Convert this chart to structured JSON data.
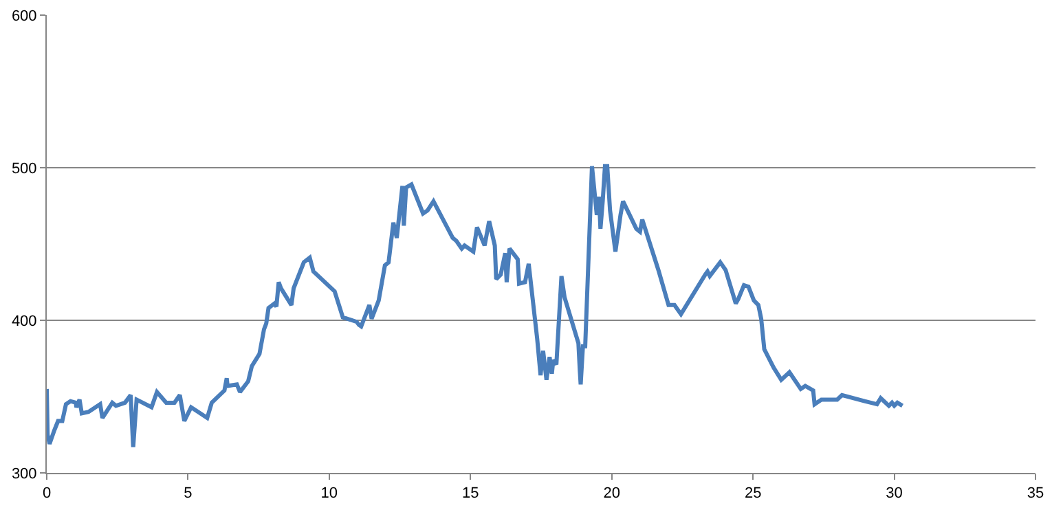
{
  "chart_data": {
    "type": "line",
    "grid": "y",
    "line_style": "solid",
    "marker": "none",
    "xlim": [
      0,
      35
    ],
    "xticks": [
      0,
      5,
      10,
      15,
      20,
      25,
      30,
      35
    ],
    "ylim": [
      300,
      600
    ],
    "yticks": [
      300,
      400,
      500,
      600
    ],
    "series": [
      {
        "color": "#4a7ebb",
        "x": [
          0,
          0.03,
          0.1,
          0.27,
          0.4,
          0.55,
          0.68,
          0.84,
          1.03,
          1.05,
          1.16,
          1.24,
          1.48,
          1.89,
          1.97,
          2.32,
          2.45,
          2.77,
          2.97,
          3.06,
          3.18,
          3.71,
          3.9,
          4.23,
          4.52,
          4.71,
          4.87,
          5.11,
          5.68,
          5.84,
          6.29,
          6.37,
          6.4,
          6.73,
          6.84,
          7.13,
          7.26,
          7.53,
          7.69,
          7.77,
          7.85,
          8.06,
          8.13,
          8.21,
          8.29,
          8.66,
          8.74,
          9.1,
          9.31,
          9.44,
          10.19,
          10.48,
          10.97,
          11.05,
          11.13,
          11.42,
          11.5,
          11.75,
          11.97,
          12.1,
          12.27,
          12.39,
          12.46,
          12.59,
          12.64,
          12.72,
          12.91,
          13.32,
          13.48,
          13.69,
          14.37,
          14.5,
          14.69,
          14.79,
          15.1,
          15.23,
          15.5,
          15.66,
          15.86,
          15.91,
          16.07,
          16.23,
          16.28,
          16.38,
          16.67,
          16.72,
          16.93,
          17.06,
          17.28,
          17.36,
          17.48,
          17.57,
          17.69,
          17.8,
          17.88,
          17.93,
          18.04,
          18.22,
          18.33,
          18.82,
          18.87,
          18.9,
          18.98,
          19.06,
          19.3,
          19.47,
          19.55,
          19.6,
          19.68,
          19.76,
          19.84,
          19.94,
          20.13,
          20.31,
          20.4,
          20.87,
          21.0,
          21.08,
          21.65,
          22.01,
          22.22,
          22.45,
          23.31,
          23.39,
          23.47,
          23.84,
          24.03,
          24.39,
          24.48,
          24.68,
          24.84,
          25.03,
          25.19,
          25.29,
          25.4,
          25.73,
          26.0,
          26.29,
          26.69,
          26.85,
          27.13,
          27.18,
          27.42,
          27.98,
          28.15,
          28.95,
          29.39,
          29.52,
          29.81,
          29.92,
          30.0,
          30.11,
          30.29
        ],
        "values": [
          355,
          325,
          319,
          328,
          334,
          334,
          345,
          347,
          346,
          343,
          348,
          339,
          340,
          345,
          336,
          346,
          344,
          346,
          351,
          317,
          348,
          343,
          353,
          346,
          346,
          351,
          334,
          343,
          336,
          346,
          354,
          362,
          357,
          358,
          353,
          360,
          370,
          378,
          394,
          398,
          408,
          411,
          409,
          425,
          421,
          410,
          421,
          438,
          441,
          432,
          419,
          402,
          399,
          397,
          396,
          410,
          401,
          413,
          436,
          438,
          464,
          454,
          466,
          488,
          462,
          487,
          489,
          470,
          472,
          478,
          454,
          452,
          447,
          449,
          445,
          461,
          449,
          465,
          449,
          427,
          430,
          444,
          425,
          447,
          440,
          424,
          425,
          437,
          401,
          388,
          364,
          380,
          361,
          376,
          365,
          374,
          371,
          429,
          415,
          385,
          367,
          358,
          383,
          383,
          501,
          469,
          481,
          460,
          478,
          501,
          501,
          472,
          445,
          469,
          478,
          460,
          458,
          466,
          433,
          410,
          410,
          404,
          430,
          432,
          429,
          438,
          433,
          411,
          414,
          423,
          422,
          413,
          410,
          401,
          381,
          369,
          361,
          366,
          355,
          357,
          354,
          345,
          348,
          348,
          351,
          347,
          345,
          349,
          344,
          346,
          344,
          346,
          344
        ]
      }
    ]
  }
}
